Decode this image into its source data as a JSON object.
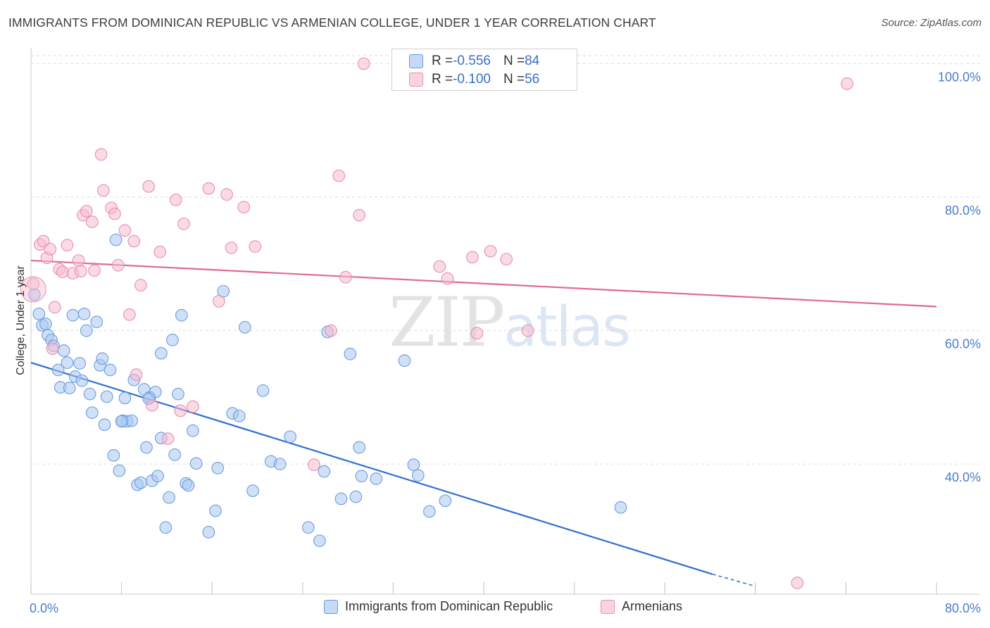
{
  "title": "IMMIGRANTS FROM DOMINICAN REPUBLIC VS ARMENIAN COLLEGE, UNDER 1 YEAR CORRELATION CHART",
  "source": "Source: ZipAtlas.com",
  "watermark": {
    "zip": "ZIP",
    "atlas": "atlas"
  },
  "colors": {
    "blue_fill": "#a9c8f0",
    "blue_stroke": "#6c9be0",
    "blue_line": "#2e6fd0",
    "pink_fill": "#f6bcd0",
    "pink_stroke": "#e88fac",
    "pink_line": "#e06a92",
    "tick_text": "#4a7cc9",
    "grid": "#dddddd"
  },
  "legend_top": {
    "rows": [
      {
        "r_label": "R = ",
        "r_value": "-0.556",
        "n_label": "N = ",
        "n_value": "84"
      },
      {
        "r_label": "R = ",
        "r_value": "-0.100",
        "n_label": "N = ",
        "n_value": "56"
      }
    ]
  },
  "legend_bottom": {
    "items": [
      "Immigrants from Dominican Republic",
      "Armenians"
    ]
  },
  "chart_data": {
    "type": "scatter",
    "title": "IMMIGRANTS FROM DOMINICAN REPUBLIC VS ARMENIAN COLLEGE, UNDER 1 YEAR CORRELATION CHART",
    "xlabel": "",
    "ylabel": "College, Under 1 year",
    "xlim": [
      0,
      80
    ],
    "ylim": [
      20.5,
      103
    ],
    "x_tick_labels": [
      "0.0%",
      "80.0%"
    ],
    "y_ticks": [
      40,
      60,
      80,
      100
    ],
    "y_tick_labels": [
      "40.0%",
      "60.0%",
      "80.0%",
      "100.0%"
    ],
    "grid": true,
    "legend_position": "top-center",
    "series": [
      {
        "name": "Immigrants from Dominican Republic",
        "r": -0.556,
        "n": 84,
        "trend": {
          "x": [
            0,
            60.2
          ],
          "y": [
            55.2,
            23.5
          ],
          "dashed_to": [
            64,
            21.7
          ]
        },
        "points": [
          [
            0.3,
            65.4
          ],
          [
            0.7,
            62.5
          ],
          [
            1.0,
            60.8
          ],
          [
            1.3,
            61.0
          ],
          [
            1.5,
            59.3
          ],
          [
            1.8,
            58.6
          ],
          [
            2.0,
            57.7
          ],
          [
            2.4,
            54.1
          ],
          [
            2.6,
            51.5
          ],
          [
            2.9,
            57.0
          ],
          [
            3.2,
            55.2
          ],
          [
            3.4,
            51.4
          ],
          [
            3.7,
            62.3
          ],
          [
            3.9,
            53.1
          ],
          [
            4.3,
            55.1
          ],
          [
            4.5,
            52.5
          ],
          [
            4.7,
            62.5
          ],
          [
            4.9,
            60.0
          ],
          [
            5.2,
            50.5
          ],
          [
            5.4,
            47.7
          ],
          [
            5.8,
            61.3
          ],
          [
            6.1,
            54.8
          ],
          [
            6.3,
            55.8
          ],
          [
            6.5,
            45.9
          ],
          [
            6.7,
            50.1
          ],
          [
            7.0,
            54.1
          ],
          [
            7.3,
            41.3
          ],
          [
            7.5,
            73.6
          ],
          [
            7.8,
            39.0
          ],
          [
            8.1,
            46.5
          ],
          [
            8.3,
            49.9
          ],
          [
            8.5,
            46.4
          ],
          [
            8.9,
            46.5
          ],
          [
            9.1,
            52.6
          ],
          [
            9.4,
            36.9
          ],
          [
            9.7,
            37.2
          ],
          [
            10.0,
            51.2
          ],
          [
            10.2,
            42.5
          ],
          [
            10.5,
            50.0
          ],
          [
            10.7,
            37.5
          ],
          [
            11.0,
            50.8
          ],
          [
            11.2,
            38.2
          ],
          [
            11.5,
            43.9
          ],
          [
            11.9,
            30.5
          ],
          [
            12.2,
            35.0
          ],
          [
            12.5,
            58.6
          ],
          [
            12.7,
            41.4
          ],
          [
            13.0,
            50.5
          ],
          [
            13.3,
            62.3
          ],
          [
            13.7,
            37.1
          ],
          [
            13.9,
            36.8
          ],
          [
            14.3,
            45.0
          ],
          [
            14.6,
            40.1
          ],
          [
            15.7,
            29.8
          ],
          [
            16.3,
            33.0
          ],
          [
            16.5,
            39.4
          ],
          [
            17.0,
            65.9
          ],
          [
            17.8,
            47.6
          ],
          [
            18.4,
            47.2
          ],
          [
            18.9,
            60.5
          ],
          [
            19.6,
            36.0
          ],
          [
            20.5,
            51.0
          ],
          [
            21.2,
            40.4
          ],
          [
            22.0,
            40.0
          ],
          [
            22.9,
            44.1
          ],
          [
            24.5,
            30.5
          ],
          [
            25.5,
            28.5
          ],
          [
            25.9,
            38.9
          ],
          [
            26.2,
            59.8
          ],
          [
            27.4,
            34.8
          ],
          [
            28.2,
            56.5
          ],
          [
            28.7,
            35.1
          ],
          [
            29.0,
            42.5
          ],
          [
            29.2,
            38.2
          ],
          [
            30.5,
            37.8
          ],
          [
            33.0,
            55.5
          ],
          [
            33.8,
            39.9
          ],
          [
            34.2,
            38.3
          ],
          [
            35.2,
            32.9
          ],
          [
            36.6,
            34.5
          ],
          [
            52.1,
            33.5
          ],
          [
            11.5,
            56.6
          ],
          [
            10.4,
            49.8
          ],
          [
            8.0,
            46.4
          ]
        ]
      },
      {
        "name": "Armenians",
        "r": -0.1,
        "n": 56,
        "trend": {
          "x": [
            0,
            80
          ],
          "y": [
            70.5,
            63.6
          ]
        },
        "points": [
          [
            0.2,
            67.0
          ],
          [
            0.8,
            72.9
          ],
          [
            1.1,
            73.4
          ],
          [
            1.4,
            70.9
          ],
          [
            1.7,
            72.2
          ],
          [
            1.9,
            57.3
          ],
          [
            2.1,
            63.5
          ],
          [
            2.5,
            69.2
          ],
          [
            2.8,
            68.8
          ],
          [
            3.2,
            72.8
          ],
          [
            3.7,
            68.6
          ],
          [
            4.2,
            70.5
          ],
          [
            4.4,
            68.9
          ],
          [
            4.6,
            77.3
          ],
          [
            4.9,
            77.9
          ],
          [
            5.4,
            76.3
          ],
          [
            5.6,
            69.0
          ],
          [
            6.2,
            86.4
          ],
          [
            6.4,
            81.0
          ],
          [
            7.1,
            78.4
          ],
          [
            7.4,
            77.5
          ],
          [
            7.7,
            69.8
          ],
          [
            8.3,
            75.0
          ],
          [
            8.7,
            62.4
          ],
          [
            9.1,
            73.4
          ],
          [
            9.3,
            53.4
          ],
          [
            9.7,
            66.8
          ],
          [
            10.4,
            81.6
          ],
          [
            10.7,
            48.8
          ],
          [
            11.4,
            71.8
          ],
          [
            12.1,
            43.8
          ],
          [
            12.8,
            79.6
          ],
          [
            13.2,
            48.0
          ],
          [
            13.5,
            76.0
          ],
          [
            14.3,
            48.6
          ],
          [
            15.7,
            81.3
          ],
          [
            16.6,
            64.4
          ],
          [
            17.3,
            80.4
          ],
          [
            17.7,
            72.4
          ],
          [
            18.8,
            78.5
          ],
          [
            19.8,
            72.6
          ],
          [
            25.0,
            39.9
          ],
          [
            26.5,
            60.0
          ],
          [
            27.2,
            83.2
          ],
          [
            27.8,
            68.0
          ],
          [
            29.0,
            77.3
          ],
          [
            29.4,
            100.0
          ],
          [
            36.1,
            69.6
          ],
          [
            36.8,
            67.8
          ],
          [
            39.0,
            71.0
          ],
          [
            39.4,
            59.6
          ],
          [
            40.6,
            71.9
          ],
          [
            42.0,
            70.7
          ],
          [
            43.9,
            60.0
          ],
          [
            67.7,
            22.2
          ],
          [
            72.1,
            97.0
          ]
        ]
      }
    ]
  }
}
